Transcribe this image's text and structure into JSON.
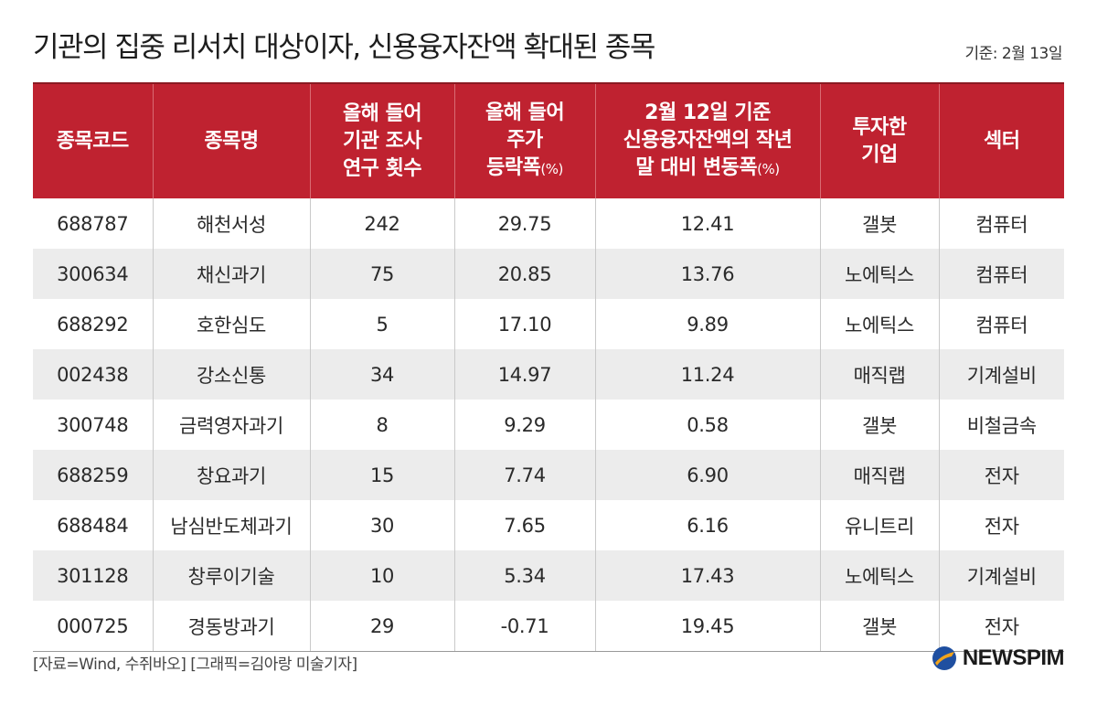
{
  "title": "기관의 집중 리서치 대상이자, 신용융자잔액 확대된 종목",
  "date": "기준: 2월 13일",
  "table": {
    "headers": [
      {
        "lines": [
          "종목코드"
        ]
      },
      {
        "lines": [
          "종목명"
        ]
      },
      {
        "lines": [
          "올해 들어",
          "기관 조사",
          "연구  횟수"
        ]
      },
      {
        "lines": [
          "올해 들어",
          "주가",
          "등락폭"
        ],
        "unit": "(%)"
      },
      {
        "lines": [
          "2월 12일 기준",
          "신용융자잔액의 작년",
          "말 대비 변동폭"
        ],
        "unit": "(%)"
      },
      {
        "lines": [
          "투자한",
          "기업"
        ]
      },
      {
        "lines": [
          "섹터"
        ]
      }
    ],
    "rows": [
      [
        "688787",
        "해천서성",
        "242",
        "29.75",
        "12.41",
        "갤봇",
        "컴퓨터"
      ],
      [
        "300634",
        "채신과기",
        "75",
        "20.85",
        "13.76",
        "노에틱스",
        "컴퓨터"
      ],
      [
        "688292",
        "호한심도",
        "5",
        "17.10",
        "9.89",
        "노에틱스",
        "컴퓨터"
      ],
      [
        "002438",
        "강소신통",
        "34",
        "14.97",
        "11.24",
        "매직랩",
        "기계설비"
      ],
      [
        "300748",
        "금력영자과기",
        "8",
        "9.29",
        "0.58",
        "갤봇",
        "비철금속"
      ],
      [
        "688259",
        "창요과기",
        "15",
        "7.74",
        "6.90",
        "매직랩",
        "전자"
      ],
      [
        "688484",
        "남심반도체과기",
        "30",
        "7.65",
        "6.16",
        "유니트리",
        "전자"
      ],
      [
        "301128",
        "창루이기술",
        "10",
        "5.34",
        "17.43",
        "노에틱스",
        "기계설비"
      ],
      [
        "000725",
        "경동방과기",
        "29",
        "-0.71",
        "19.45",
        "갤봇",
        "전자"
      ]
    ]
  },
  "footer": {
    "source": "[자료=Wind, 수쥐바오] [그래픽=김아랑 미술기자]",
    "logo_text": "NEWSPIM",
    "logo_icon": "newspim-logo-icon"
  },
  "colors": {
    "header_bg": "#bf2230",
    "stripe": "#ececec"
  }
}
